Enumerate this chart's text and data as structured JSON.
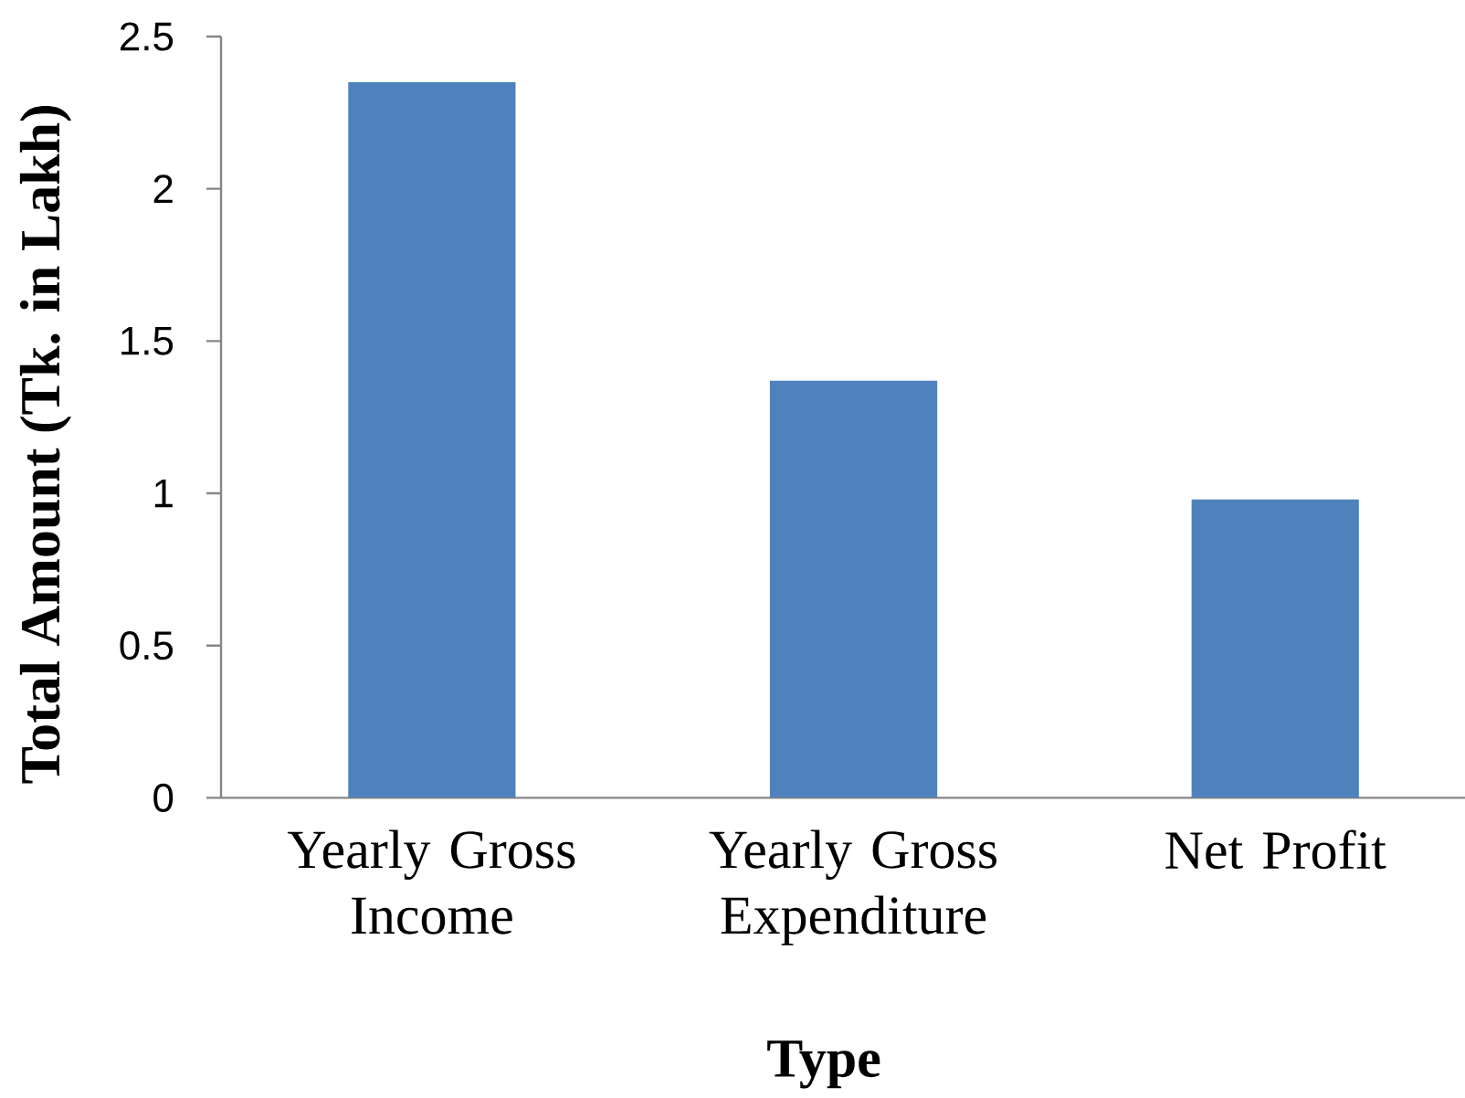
{
  "chart_data": {
    "type": "bar",
    "xlabel": "Type",
    "ylabel": "Total Amount (Tk. in Lakh)",
    "categories": [
      "Yearly Gross Income",
      "Yearly Gross Expenditure",
      "Net Profit"
    ],
    "values": [
      2.35,
      1.37,
      0.98
    ],
    "color": "#4f81bd",
    "ylim": [
      0,
      2.5
    ],
    "yticks": [
      0,
      0.5,
      1,
      1.5,
      2,
      2.5
    ],
    "grid": false
  }
}
